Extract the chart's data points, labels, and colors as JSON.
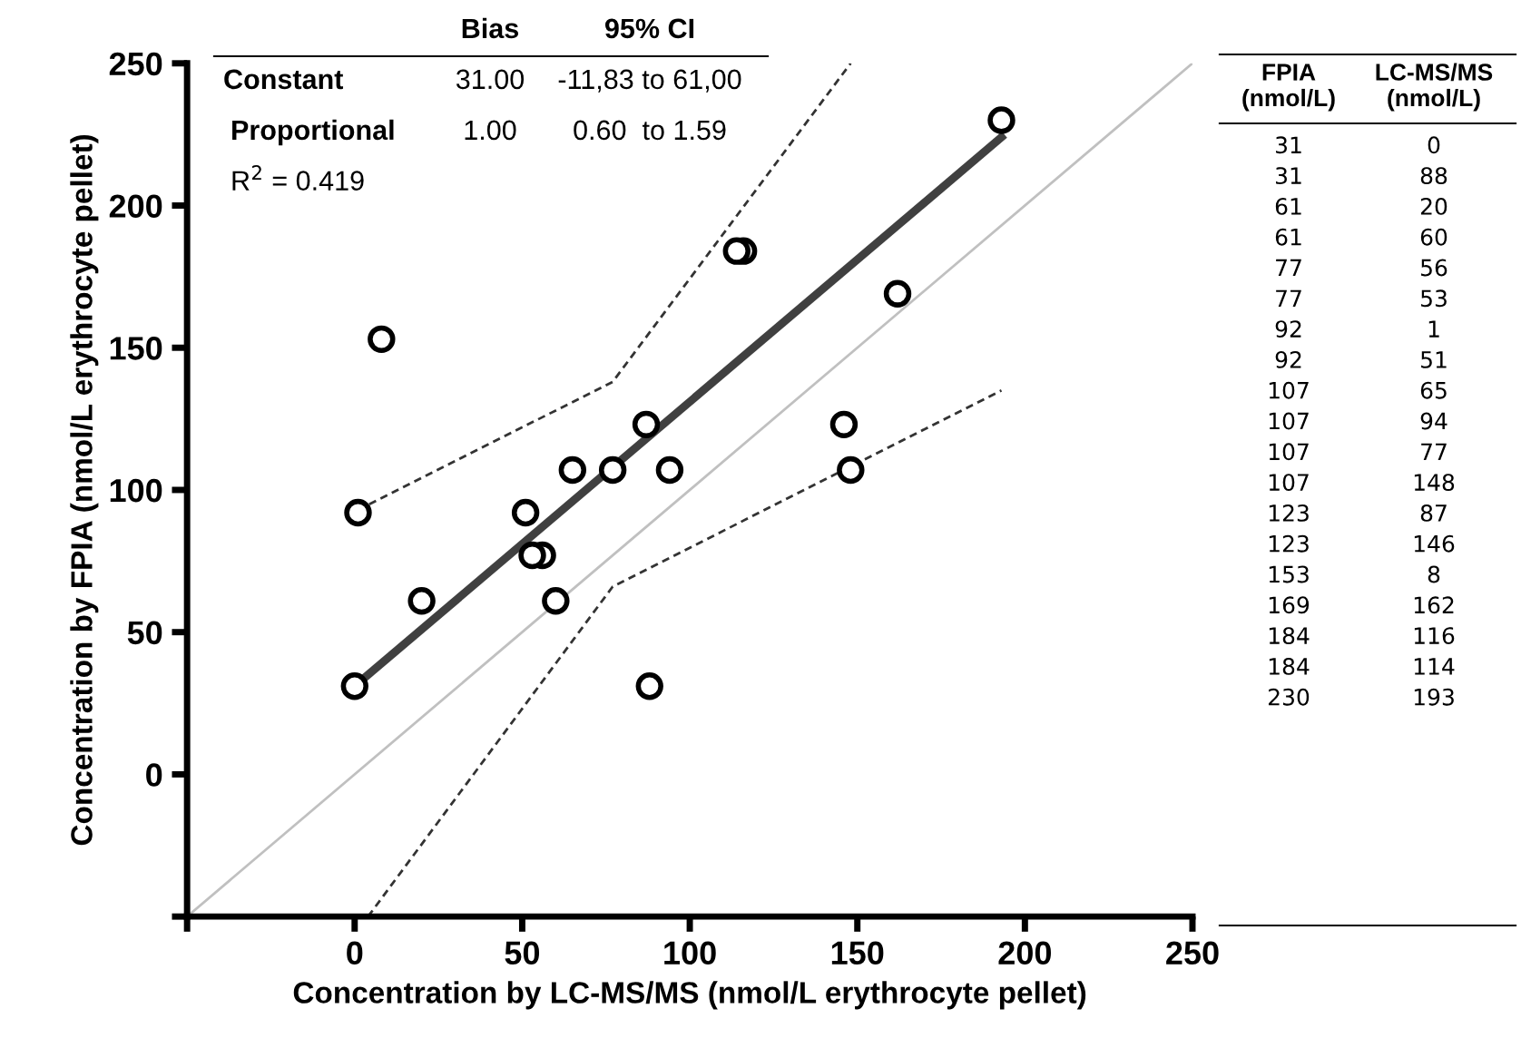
{
  "chart_data": {
    "type": "scatter",
    "xlabel": "Concentration by LC-MS/MS (nmol/L erythrocyte pellet)",
    "ylabel": "Concentration by FPIA (nmol/L erythrocyte pellet)",
    "xlim": [
      -50,
      250
    ],
    "ylim": [
      -50,
      250
    ],
    "xticks": [
      {
        "value": -50,
        "label": null
      },
      0,
      50,
      100,
      150,
      200,
      250
    ],
    "yticks": [
      {
        "value": -50,
        "label": null
      },
      0,
      50,
      100,
      150,
      200,
      250
    ],
    "grid": false,
    "series": [
      {
        "type": "line",
        "color": "#c0c0c0",
        "line_style": "solid",
        "marker": "none",
        "x": [
          -50,
          250
        ],
        "values": [
          -50,
          250
        ]
      },
      {
        "type": "line",
        "color": "#333333",
        "line_style": "dashed",
        "marker": "none",
        "x": [
          1,
          77,
          148
        ],
        "values": [
          93,
          138,
          250
        ]
      },
      {
        "type": "line",
        "color": "#333333",
        "line_style": "dashed",
        "marker": "none",
        "x": [
          4,
          77,
          193
        ],
        "values": [
          -50,
          66,
          135
        ]
      },
      {
        "type": "line",
        "color": "#404040",
        "line_style": "solid",
        "marker": "none",
        "x": [
          0,
          193
        ],
        "values": [
          31,
          224
        ]
      },
      {
        "color": "#000000",
        "marker": "circle",
        "x": [
          0,
          88,
          20,
          60,
          56,
          53,
          1,
          51,
          65,
          94,
          77,
          148,
          87,
          146,
          8,
          162,
          116,
          114,
          193
        ],
        "values": [
          31,
          31,
          61,
          61,
          77,
          77,
          92,
          92,
          107,
          107,
          107,
          107,
          123,
          123,
          153,
          169,
          184,
          184,
          230
        ]
      }
    ],
    "annotations": [
      "Bias",
      "95% CI",
      "Constant",
      "31.00",
      "-11,83 to 61,00",
      "Proportional",
      "1.00",
      "0.60  to 1.59",
      "R$^{2}$ = 0.419",
      "FPIA\n(nmol/L)",
      "LC-MS/MS\n(nmol/L)",
      "31",
      "0",
      "31",
      "88",
      "61",
      "20",
      "61",
      "60",
      "77",
      "56",
      "77",
      "53",
      "92",
      "1",
      "92",
      "51",
      "107",
      "65",
      "107",
      "94",
      "107",
      "77",
      "107",
      "148",
      "123",
      "87",
      "123",
      "146",
      "153",
      "8",
      "169",
      "162",
      "184",
      "116",
      "184",
      "114",
      "230",
      "193"
    ]
  }
}
